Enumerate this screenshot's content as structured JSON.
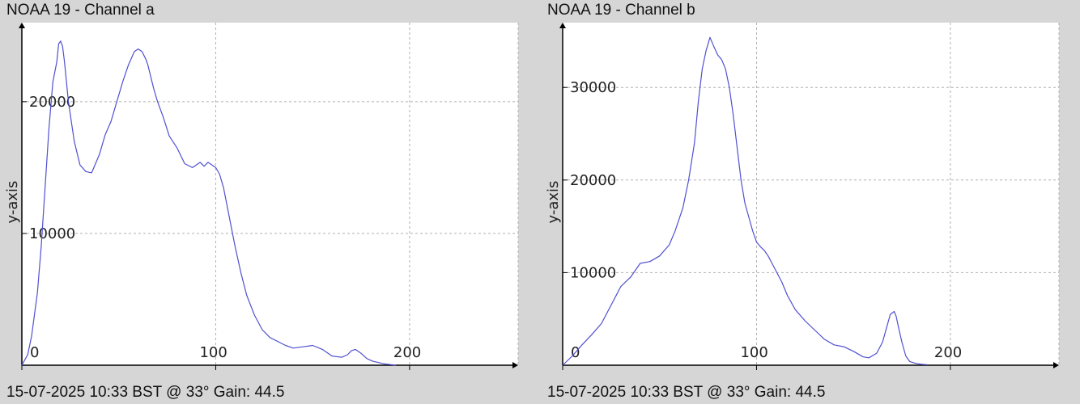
{
  "colors": {
    "background": "#d6d6d6",
    "plot": "#ffffff",
    "line": "#5050d2",
    "grid": "#b0b0b0",
    "axis": "#000000"
  },
  "panels": [
    {
      "title": "NOAA 19 - Channel a",
      "footer": "15-07-2025 10:33 BST @ 33° Gain: 44.5",
      "ylabel": "y-axis"
    },
    {
      "title": "NOAA 19 - Channel b",
      "footer": "15-07-2025 10:33 BST @ 33° Gain: 44.5",
      "ylabel": "y-axis"
    }
  ],
  "chart_data": [
    {
      "type": "line",
      "title": "NOAA 19 - Channel a",
      "xlabel": "",
      "ylabel": "y-axis",
      "xlim": [
        0,
        256
      ],
      "ylim": [
        0,
        26000
      ],
      "xticks": [
        0,
        100,
        200
      ],
      "yticks": [
        10000,
        20000
      ],
      "grid": true,
      "series": [
        {
          "x": [
            0,
            3,
            5,
            8,
            10,
            12,
            14,
            16,
            18,
            19,
            20,
            21,
            22,
            23,
            24,
            25,
            27,
            30,
            33,
            36,
            38,
            40,
            43,
            46,
            49,
            52,
            55,
            58,
            60,
            62,
            64,
            65,
            66,
            68,
            70,
            73,
            76,
            80,
            84,
            88,
            92,
            94,
            96,
            98,
            100,
            102,
            104,
            106,
            108,
            110,
            113,
            116,
            120,
            124,
            128,
            132,
            136,
            140,
            145,
            150,
            155,
            160,
            165,
            168,
            170,
            172,
            175,
            178,
            181,
            184,
            187,
            190,
            193
          ],
          "y": [
            0,
            800,
            2200,
            5500,
            9000,
            13500,
            18000,
            21500,
            23000,
            24400,
            24600,
            24200,
            23000,
            21500,
            20000,
            19000,
            17000,
            15200,
            14700,
            14600,
            15300,
            16000,
            17500,
            18500,
            20000,
            21500,
            22800,
            23800,
            24000,
            23800,
            23200,
            22800,
            22200,
            21000,
            20000,
            18800,
            17400,
            16500,
            15300,
            15000,
            15400,
            15100,
            15400,
            15200,
            15000,
            14500,
            13500,
            12000,
            10500,
            9000,
            7000,
            5300,
            3800,
            2700,
            2100,
            1800,
            1500,
            1300,
            1400,
            1500,
            1200,
            700,
            600,
            800,
            1100,
            1200,
            900,
            500,
            300,
            200,
            100,
            50,
            0
          ]
        }
      ]
    },
    {
      "type": "line",
      "title": "NOAA 19 - Channel b",
      "xlabel": "",
      "ylabel": "y-axis",
      "xlim": [
        0,
        256
      ],
      "ylim": [
        0,
        37000
      ],
      "xticks": [
        0,
        100,
        200
      ],
      "yticks": [
        10000,
        20000,
        30000
      ],
      "grid": true,
      "series": [
        {
          "x": [
            0,
            5,
            10,
            15,
            20,
            25,
            30,
            35,
            40,
            45,
            50,
            55,
            58,
            62,
            65,
            68,
            70,
            72,
            74,
            76,
            78,
            80,
            82,
            84,
            86,
            88,
            90,
            92,
            94,
            96,
            98,
            100,
            102,
            104,
            106,
            108,
            110,
            113,
            116,
            120,
            125,
            130,
            135,
            140,
            145,
            150,
            155,
            158,
            162,
            165,
            167,
            169,
            171,
            172,
            173,
            175,
            177,
            179,
            182,
            185,
            188
          ],
          "y": [
            0,
            1000,
            2200,
            3300,
            4500,
            6500,
            8500,
            9500,
            11000,
            11200,
            11800,
            13000,
            14500,
            17000,
            20000,
            24000,
            28500,
            32000,
            34000,
            35400,
            34400,
            33500,
            33000,
            32000,
            30000,
            27000,
            23500,
            20000,
            17500,
            16000,
            14500,
            13300,
            12800,
            12400,
            11800,
            11000,
            10200,
            9000,
            7500,
            6000,
            4800,
            3800,
            2800,
            2200,
            2000,
            1500,
            900,
            800,
            1300,
            2500,
            4000,
            5500,
            5800,
            5300,
            4300,
            2500,
            1000,
            400,
            200,
            100,
            50
          ]
        }
      ]
    }
  ]
}
